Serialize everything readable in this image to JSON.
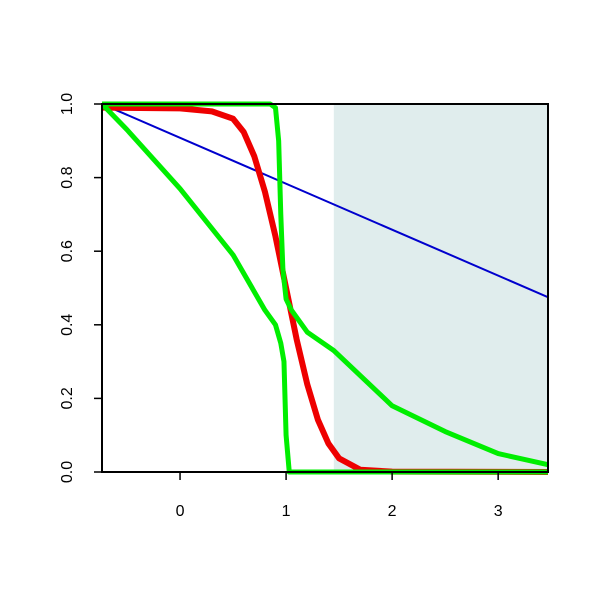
{
  "chart_data": {
    "type": "line",
    "xlim": [
      -0.736,
      3.47
    ],
    "ylim": [
      0,
      1
    ],
    "xticks": [
      0,
      1,
      2,
      3
    ],
    "yticks": [
      {
        "value": 0,
        "label": "0.0"
      },
      {
        "value": 0.2,
        "label": "0.2"
      },
      {
        "value": 0.4,
        "label": "0.4"
      },
      {
        "value": 0.6,
        "label": "0.6"
      },
      {
        "value": 0.8,
        "label": "0.8"
      },
      {
        "value": 1,
        "label": "1.0"
      }
    ],
    "shaded_region": {
      "xlim": [
        1.45,
        3.47
      ],
      "color": "#e0eded"
    },
    "series": [
      {
        "color": "#0000cd",
        "width": 2,
        "x": [
          -0.736,
          3.47
        ],
        "values": [
          1,
          0.475
        ]
      },
      {
        "color": "#ee0000",
        "width": 6,
        "x": [
          -0.736,
          0,
          0.3,
          0.5,
          0.6,
          0.7,
          0.8,
          0.9,
          1.0,
          1.1,
          1.2,
          1.3,
          1.4,
          1.5,
          1.7,
          2,
          3.47
        ],
        "values": [
          0.99,
          0.988,
          0.98,
          0.96,
          0.924,
          0.858,
          0.762,
          0.64,
          0.5,
          0.36,
          0.238,
          0.142,
          0.077,
          0.037,
          0.006,
          0.001,
          0
        ]
      },
      {
        "color": "#00ee00",
        "width": 5,
        "x": [
          -0.736,
          0.85,
          0.9,
          0.93,
          0.95,
          0.97,
          1.0,
          1.05,
          1.1,
          1.2,
          1.45,
          2,
          2.5,
          3,
          3.47
        ],
        "values": [
          1,
          1,
          0.99,
          0.9,
          0.7,
          0.55,
          0.47,
          0.44,
          0.42,
          0.38,
          0.33,
          0.18,
          0.11,
          0.05,
          0.02
        ]
      },
      {
        "color": "#00ee00",
        "width": 5,
        "x": [
          -0.736,
          -0.5,
          0,
          0.5,
          0.8,
          0.9,
          0.95,
          0.98,
          1.0,
          1.03,
          1.1,
          3.47
        ],
        "values": [
          1,
          0.93,
          0.77,
          0.59,
          0.44,
          0.4,
          0.35,
          0.3,
          0.1,
          0,
          0,
          0
        ]
      }
    ]
  }
}
